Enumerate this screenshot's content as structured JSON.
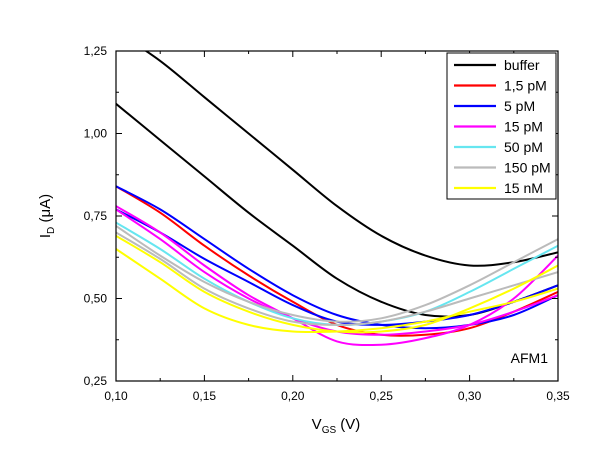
{
  "chart_data": {
    "type": "line",
    "xlabel": {
      "main": "V",
      "sub": "GS",
      "unit": " (V)"
    },
    "ylabel": {
      "main": "I",
      "sub": "D",
      "unit": " (μA)"
    },
    "xlim": [
      0.1,
      0.35
    ],
    "ylim": [
      0.25,
      1.25
    ],
    "xticks": [
      0.1,
      0.15,
      0.2,
      0.25,
      0.3,
      0.35
    ],
    "yticks": [
      0.25,
      0.5,
      0.75,
      1.0,
      1.25
    ],
    "xtick_labels": [
      "0,10",
      "0,15",
      "0,20",
      "0,25",
      "0,30",
      "0,35"
    ],
    "ytick_labels": [
      "0,25",
      "0,50",
      "0,75",
      "1,00",
      "1,25"
    ],
    "annotation": "AFM1",
    "legend_position": "top-right",
    "grid": false,
    "series": [
      {
        "name": "buffer",
        "color": "#000000",
        "x": [
          0.1,
          0.125,
          0.15,
          0.175,
          0.2,
          0.225,
          0.25,
          0.275,
          0.3,
          0.325,
          0.35
        ],
        "y": [
          1.31,
          1.22,
          1.11,
          1.0,
          0.89,
          0.78,
          0.69,
          0.63,
          0.6,
          0.61,
          0.64
        ]
      },
      {
        "name": "buffer",
        "color": "#000000",
        "x": [
          0.1,
          0.125,
          0.15,
          0.175,
          0.2,
          0.225,
          0.25,
          0.275,
          0.3,
          0.325,
          0.35
        ],
        "y": [
          1.09,
          0.98,
          0.87,
          0.76,
          0.66,
          0.56,
          0.49,
          0.45,
          0.45,
          0.49,
          0.54
        ]
      },
      {
        "name": "1,5 pM",
        "color": "#ff0000",
        "x": [
          0.1,
          0.125,
          0.15,
          0.175,
          0.2,
          0.225,
          0.25,
          0.275,
          0.3,
          0.325,
          0.35
        ],
        "y": [
          0.84,
          0.76,
          0.66,
          0.57,
          0.49,
          0.42,
          0.39,
          0.39,
          0.41,
          0.46,
          0.52
        ]
      },
      {
        "name": "5 pM",
        "color": "#0000ff",
        "x": [
          0.1,
          0.125,
          0.15,
          0.175,
          0.2,
          0.225,
          0.25,
          0.275,
          0.3,
          0.325,
          0.35
        ],
        "y": [
          0.84,
          0.77,
          0.68,
          0.59,
          0.51,
          0.45,
          0.42,
          0.41,
          0.42,
          0.45,
          0.51
        ]
      },
      {
        "name": "5 pM",
        "color": "#0000ff",
        "x": [
          0.1,
          0.125,
          0.15,
          0.175,
          0.2,
          0.225,
          0.25,
          0.275,
          0.3,
          0.325,
          0.35
        ],
        "y": [
          0.77,
          0.7,
          0.62,
          0.55,
          0.48,
          0.43,
          0.42,
          0.43,
          0.45,
          0.49,
          0.54
        ]
      },
      {
        "name": "15 pM",
        "color": "#ff00ff",
        "x": [
          0.1,
          0.125,
          0.15,
          0.175,
          0.2,
          0.225,
          0.25,
          0.275,
          0.3,
          0.325,
          0.35
        ],
        "y": [
          0.78,
          0.7,
          0.6,
          0.51,
          0.44,
          0.37,
          0.36,
          0.38,
          0.42,
          0.5,
          0.63
        ]
      },
      {
        "name": "15 pM",
        "color": "#ff00ff",
        "x": [
          0.1,
          0.125,
          0.15,
          0.175,
          0.2,
          0.225,
          0.25,
          0.275,
          0.3,
          0.325,
          0.35
        ],
        "y": [
          0.77,
          0.68,
          0.58,
          0.5,
          0.44,
          0.4,
          0.39,
          0.4,
          0.42,
          0.46,
          0.51
        ]
      },
      {
        "name": "50 pM",
        "color": "#66e6f0",
        "x": [
          0.1,
          0.125,
          0.15,
          0.175,
          0.2,
          0.225,
          0.25,
          0.275,
          0.3,
          0.325,
          0.35
        ],
        "y": [
          0.73,
          0.65,
          0.56,
          0.49,
          0.44,
          0.42,
          0.43,
          0.46,
          0.52,
          0.59,
          0.66
        ]
      },
      {
        "name": "150 pM",
        "color": "#bbbbbb",
        "x": [
          0.1,
          0.125,
          0.15,
          0.175,
          0.2,
          0.225,
          0.25,
          0.275,
          0.3,
          0.325,
          0.35
        ],
        "y": [
          0.72,
          0.63,
          0.55,
          0.49,
          0.45,
          0.43,
          0.44,
          0.48,
          0.54,
          0.61,
          0.68
        ]
      },
      {
        "name": "150 pM",
        "color": "#bbbbbb",
        "x": [
          0.1,
          0.125,
          0.15,
          0.175,
          0.2,
          0.225,
          0.25,
          0.275,
          0.3,
          0.325,
          0.35
        ],
        "y": [
          0.7,
          0.62,
          0.53,
          0.47,
          0.43,
          0.42,
          0.43,
          0.46,
          0.5,
          0.54,
          0.58
        ]
      },
      {
        "name": "15 nM",
        "color": "#ffff00",
        "x": [
          0.1,
          0.125,
          0.15,
          0.175,
          0.2,
          0.225,
          0.25,
          0.275,
          0.3,
          0.325,
          0.35
        ],
        "y": [
          0.69,
          0.61,
          0.52,
          0.46,
          0.42,
          0.4,
          0.4,
          0.42,
          0.47,
          0.53,
          0.6
        ]
      },
      {
        "name": "15 nM",
        "color": "#ffff00",
        "x": [
          0.1,
          0.125,
          0.15,
          0.175,
          0.2,
          0.225,
          0.25,
          0.275,
          0.3,
          0.325,
          0.35
        ],
        "y": [
          0.65,
          0.56,
          0.47,
          0.42,
          0.4,
          0.4,
          0.41,
          0.43,
          0.46,
          0.49,
          0.53
        ]
      }
    ],
    "legend": [
      {
        "label": "buffer",
        "color": "#000000"
      },
      {
        "label": "1,5 pM",
        "color": "#ff0000"
      },
      {
        "label": "5 pM",
        "color": "#0000ff"
      },
      {
        "label": "15 pM",
        "color": "#ff00ff"
      },
      {
        "label": "50 pM",
        "color": "#66e6f0"
      },
      {
        "label": "150 pM",
        "color": "#bbbbbb"
      },
      {
        "label": "15 nM",
        "color": "#ffff00"
      }
    ]
  }
}
